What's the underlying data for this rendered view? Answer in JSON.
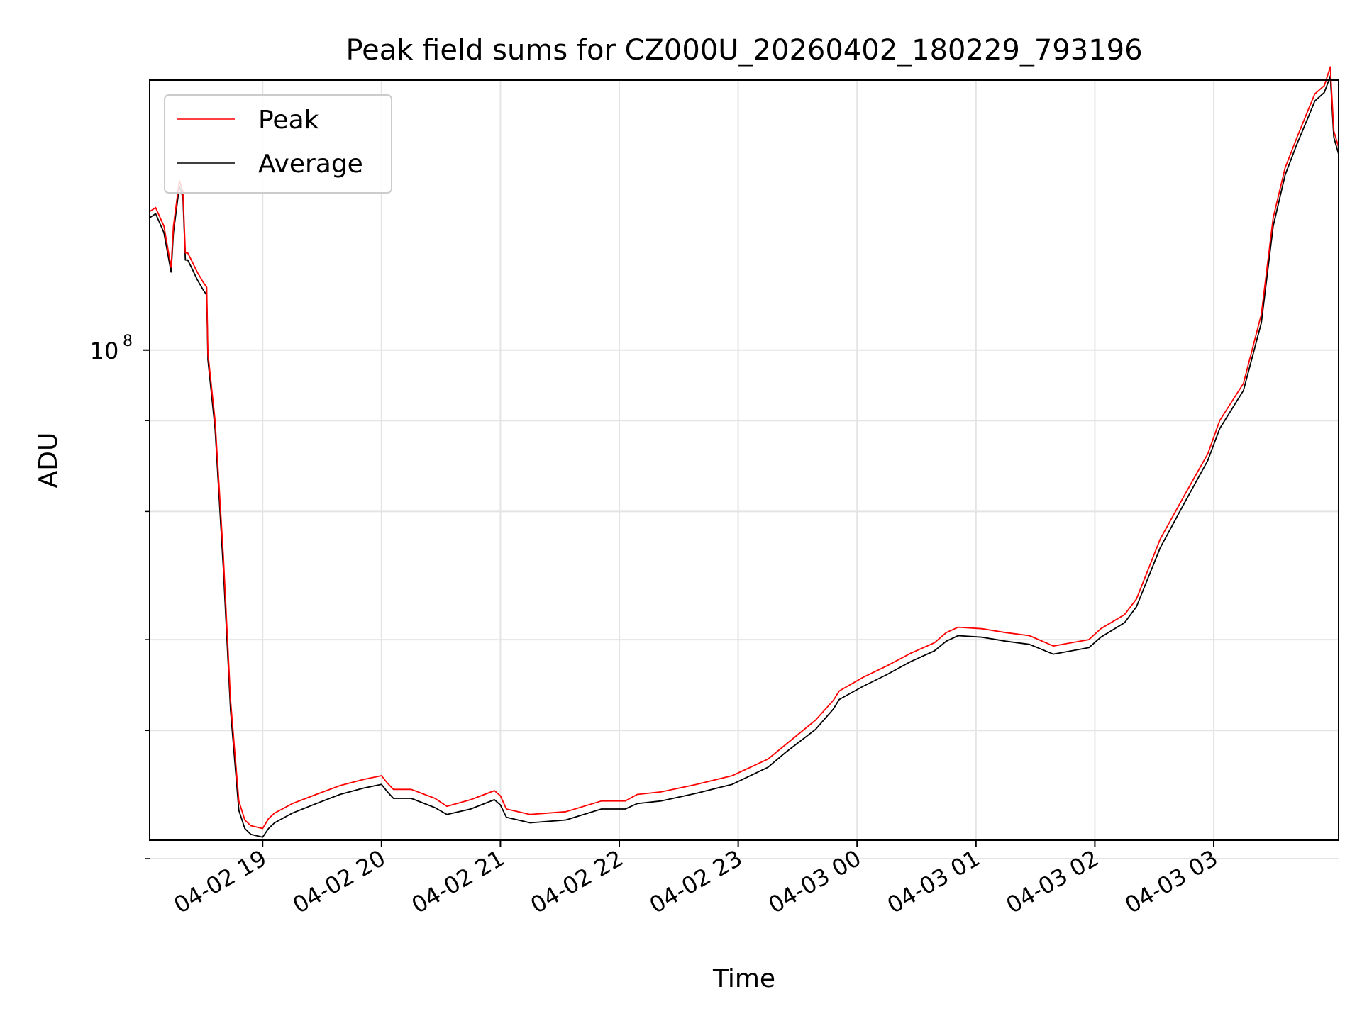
{
  "chart_data": {
    "type": "line",
    "title": "Peak field sums for CZ000U_20260402_180229_793196",
    "xlabel": "Time",
    "ylabel": "ADU",
    "yscale": "log",
    "grid": true,
    "legend_loc": "upper-left",
    "xlim_hours": [
      0,
      10.0
    ],
    "ylim": [
      21200000,
      235000000
    ],
    "x_unit": "hours since 2026-04-02 18:03",
    "xticks": [
      {
        "x": 0.95,
        "label": "04-02 19"
      },
      {
        "x": 1.95,
        "label": "04-02 20"
      },
      {
        "x": 2.95,
        "label": "04-02 21"
      },
      {
        "x": 3.95,
        "label": "04-02 22"
      },
      {
        "x": 4.95,
        "label": "04-02 23"
      },
      {
        "x": 5.95,
        "label": "04-03 00"
      },
      {
        "x": 6.95,
        "label": "04-03 01"
      },
      {
        "x": 7.95,
        "label": "04-03 02"
      },
      {
        "x": 8.95,
        "label": "04-03 03"
      }
    ],
    "yticks_major": [
      {
        "value": 100000000,
        "base": "10",
        "exp": "8"
      }
    ],
    "yticks_minor": [
      20000000,
      30000000,
      40000000,
      60000000,
      80000000
    ],
    "series": [
      {
        "name": "Peak",
        "color": "#ff0000",
        "x": [
          0,
          0.05,
          0.12,
          0.18,
          0.2,
          0.25,
          0.28,
          0.3,
          0.32,
          0.35,
          0.4,
          0.45,
          0.48,
          0.49,
          0.55,
          0.62,
          0.68,
          0.75,
          0.8,
          0.85,
          0.95,
          1.0,
          1.05,
          1.2,
          1.4,
          1.6,
          1.8,
          1.95,
          2.0,
          2.05,
          2.2,
          2.4,
          2.5,
          2.7,
          2.9,
          2.95,
          3.0,
          3.2,
          3.5,
          3.8,
          4.0,
          4.1,
          4.3,
          4.6,
          4.9,
          5.2,
          5.35,
          5.6,
          5.75,
          5.8,
          6.0,
          6.2,
          6.4,
          6.6,
          6.7,
          6.8,
          7.0,
          7.2,
          7.4,
          7.6,
          7.9,
          8.0,
          8.2,
          8.3,
          8.5,
          8.7,
          8.9,
          9.0,
          9.2,
          9.35,
          9.45,
          9.55,
          9.65,
          9.75,
          9.8,
          9.88,
          9.93,
          9.96,
          10.0
        ],
        "y": [
          155000000,
          157000000,
          148000000,
          130000000,
          148000000,
          171000000,
          165000000,
          136000000,
          136000000,
          133000000,
          128000000,
          124000000,
          122000000,
          99000000,
          80000000,
          52000000,
          33000000,
          24000000,
          22600000,
          22200000,
          22000000,
          22700000,
          23100000,
          23800000,
          24500000,
          25200000,
          25700000,
          26000000,
          25400000,
          24900000,
          24900000,
          24200000,
          23600000,
          24100000,
          24800000,
          24400000,
          23400000,
          23000000,
          23200000,
          24000000,
          24000000,
          24500000,
          24700000,
          25300000,
          26000000,
          27400000,
          28700000,
          31000000,
          33000000,
          34000000,
          35500000,
          36800000,
          38300000,
          39600000,
          40900000,
          41600000,
          41400000,
          40900000,
          40500000,
          39200000,
          40000000,
          41400000,
          43300000,
          45500000,
          55000000,
          63000000,
          72000000,
          80000000,
          90000000,
          112000000,
          152000000,
          178000000,
          196000000,
          215000000,
          225000000,
          231000000,
          245000000,
          200000000,
          190000000
        ]
      },
      {
        "name": "Average",
        "color": "#000000",
        "x": [
          0,
          0.05,
          0.12,
          0.18,
          0.2,
          0.25,
          0.28,
          0.3,
          0.32,
          0.35,
          0.4,
          0.45,
          0.48,
          0.49,
          0.55,
          0.62,
          0.68,
          0.75,
          0.8,
          0.85,
          0.95,
          1.0,
          1.05,
          1.2,
          1.4,
          1.6,
          1.8,
          1.95,
          2.0,
          2.05,
          2.2,
          2.4,
          2.5,
          2.7,
          2.9,
          2.95,
          3.0,
          3.2,
          3.5,
          3.8,
          4.0,
          4.1,
          4.3,
          4.6,
          4.9,
          5.2,
          5.35,
          5.6,
          5.75,
          5.8,
          6.0,
          6.2,
          6.4,
          6.6,
          6.7,
          6.8,
          7.0,
          7.2,
          7.4,
          7.6,
          7.9,
          8.0,
          8.2,
          8.3,
          8.5,
          8.7,
          8.9,
          9.0,
          9.2,
          9.35,
          9.45,
          9.55,
          9.65,
          9.75,
          9.8,
          9.88,
          9.93,
          9.96,
          10.0
        ],
        "y": [
          152000000,
          154000000,
          145000000,
          128000000,
          145000000,
          168000000,
          162000000,
          133000000,
          133000000,
          130000000,
          125000000,
          121000000,
          119000000,
          97000000,
          78000000,
          50000000,
          32000000,
          23300000,
          22000000,
          21600000,
          21400000,
          22000000,
          22400000,
          23100000,
          23800000,
          24500000,
          25000000,
          25300000,
          24700000,
          24200000,
          24200000,
          23500000,
          23000000,
          23400000,
          24100000,
          23700000,
          22800000,
          22400000,
          22600000,
          23400000,
          23400000,
          23800000,
          24000000,
          24600000,
          25300000,
          26700000,
          28000000,
          30100000,
          32100000,
          33100000,
          34500000,
          35800000,
          37300000,
          38600000,
          39800000,
          40500000,
          40300000,
          39800000,
          39400000,
          38200000,
          39000000,
          40300000,
          42200000,
          44400000,
          53500000,
          61500000,
          70500000,
          78000000,
          88000000,
          109000000,
          148000000,
          174000000,
          192000000,
          210000000,
          220000000,
          226000000,
          238000000,
          196000000,
          186000000
        ]
      }
    ]
  }
}
